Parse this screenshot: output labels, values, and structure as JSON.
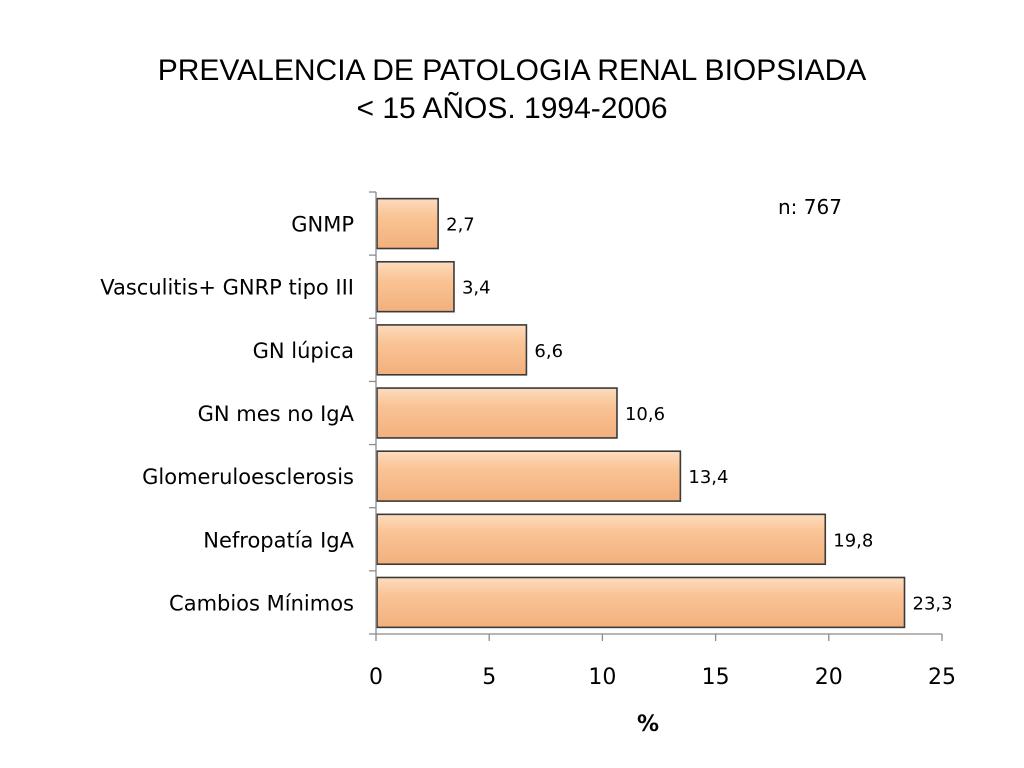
{
  "slide": {
    "title_line1": "PREVALENCIA DE PATOLOGIA RENAL BIOPSIADA",
    "title_line2": "< 15 AÑOS. 1994-2006"
  },
  "chart_data": {
    "type": "bar",
    "orientation": "horizontal",
    "categories": [
      "GNMP",
      "Vasculitis+ GNRP tipo III",
      "GN lúpica",
      "GN mes no IgA",
      "Glomeruloesclerosis",
      "Nefropatía IgA",
      "Cambios Mínimos"
    ],
    "values": [
      2.7,
      3.4,
      6.6,
      10.6,
      13.4,
      19.8,
      23.3
    ],
    "value_labels": [
      "2,7",
      "3,4",
      "6,6",
      "10,6",
      "13,4",
      "19,8",
      "23,3"
    ],
    "xlabel": "%",
    "xlim": [
      0,
      25
    ],
    "xticks": [
      0,
      5,
      10,
      15,
      20,
      25
    ],
    "annotation": "n: 767",
    "grid": false,
    "legend": "none",
    "bar_color": "#FAC496",
    "bar_edge_color": "#3a3a3a"
  }
}
